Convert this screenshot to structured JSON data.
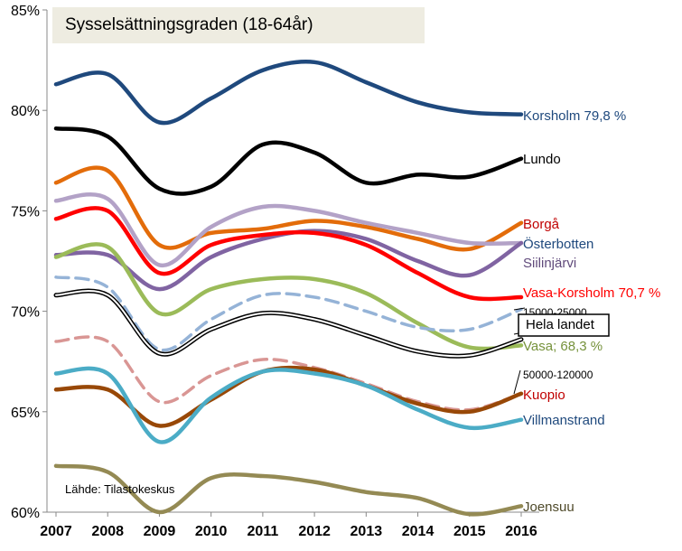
{
  "chart_data": {
    "type": "line",
    "title": "Sysselsättningsgraden (18-64år)",
    "source": "Lähde: Tilastokeskus",
    "xlabel": "",
    "ylabel": "",
    "x": [
      2007,
      2008,
      2009,
      2010,
      2011,
      2012,
      2013,
      2014,
      2015,
      2016
    ],
    "y_ticks": [
      "60%",
      "65%",
      "70%",
      "75%",
      "80%",
      "85%"
    ],
    "ylim": [
      60,
      85
    ],
    "series": [
      {
        "name": "Korsholm",
        "label": "Korsholm 79,8 %",
        "color": "#1f497d",
        "width": 4.5,
        "style": "solid",
        "values": [
          81.3,
          81.8,
          79.4,
          80.6,
          82.0,
          82.4,
          81.4,
          80.4,
          79.9,
          79.8
        ]
      },
      {
        "name": "Lundo",
        "label": "Lundo",
        "color": "#000000",
        "width": 4.5,
        "style": "solid",
        "values": [
          79.1,
          78.7,
          76.1,
          76.2,
          78.3,
          77.9,
          76.4,
          76.8,
          76.7,
          77.6
        ]
      },
      {
        "name": "Borgå",
        "label": "Borgå",
        "color": "#e36c0a",
        "width": 4.5,
        "style": "solid",
        "values": [
          76.4,
          77.0,
          73.3,
          73.9,
          74.1,
          74.5,
          74.2,
          73.6,
          73.1,
          74.4
        ]
      },
      {
        "name": "Österbotten",
        "label": "Österbotten",
        "color": "#b3a2c7",
        "width": 4.5,
        "style": "solid",
        "values": [
          75.5,
          75.6,
          72.3,
          74.2,
          75.2,
          75.0,
          74.4,
          73.9,
          73.4,
          73.4
        ]
      },
      {
        "name": "Siilinjärvi",
        "label": "Siilinjärvi",
        "color": "#8064a2",
        "width": 4.5,
        "style": "solid",
        "values": [
          72.8,
          72.8,
          71.1,
          72.7,
          73.6,
          74.0,
          73.6,
          72.5,
          71.8,
          73.4
        ]
      },
      {
        "name": "Vasa-Korsholm",
        "label": "Vasa-Korsholm 70,7 %",
        "color": "#ff0000",
        "width": 4.5,
        "style": "solid",
        "values": [
          74.6,
          75.0,
          71.9,
          73.3,
          73.8,
          73.9,
          73.3,
          71.9,
          70.7,
          70.7
        ]
      },
      {
        "name": "Vasa",
        "label": "Vasa; 68,3 %",
        "color": "#9bbb59",
        "width": 4.5,
        "style": "solid",
        "values": [
          72.7,
          73.2,
          69.9,
          71.1,
          71.6,
          71.6,
          70.9,
          69.4,
          68.2,
          68.3
        ]
      },
      {
        "name": "15000-25000",
        "label": "15000-25000",
        "color": "#95b3d7",
        "width": 3.5,
        "style": "dashed",
        "values": [
          71.7,
          71.2,
          68.1,
          69.6,
          70.8,
          70.7,
          70.0,
          69.2,
          69.1,
          70.1
        ]
      },
      {
        "name": "Hela landet",
        "label": "Hela landet",
        "color": "#000000",
        "width": 2,
        "style": "double",
        "values": [
          70.8,
          70.8,
          67.9,
          69.1,
          69.9,
          69.6,
          68.8,
          68.0,
          67.8,
          68.6
        ]
      },
      {
        "name": "50000-120000",
        "label": "50000-120000",
        "color": "#d99694",
        "width": 3.5,
        "style": "dashed",
        "values": [
          68.5,
          68.5,
          65.5,
          66.8,
          67.6,
          67.2,
          66.4,
          65.5,
          65.1,
          65.9
        ]
      },
      {
        "name": "Kuopio",
        "label": "Kuopio",
        "color": "#984807",
        "width": 4.5,
        "style": "solid",
        "values": [
          66.1,
          66.1,
          64.3,
          65.6,
          67.0,
          67.1,
          66.3,
          65.4,
          65.0,
          65.9
        ]
      },
      {
        "name": "Villmanstrand",
        "label": "Villmanstrand",
        "color": "#4bacc6",
        "width": 4.5,
        "style": "solid",
        "values": [
          66.9,
          66.9,
          63.5,
          65.7,
          67.0,
          66.9,
          66.3,
          65.1,
          64.2,
          64.6
        ]
      },
      {
        "name": "Joensuu",
        "label": "Joensuu",
        "color": "#948a54",
        "width": 4.5,
        "style": "solid",
        "values": [
          62.3,
          62.0,
          60.0,
          61.7,
          61.8,
          61.5,
          61.0,
          60.7,
          59.9,
          60.3
        ]
      }
    ]
  }
}
